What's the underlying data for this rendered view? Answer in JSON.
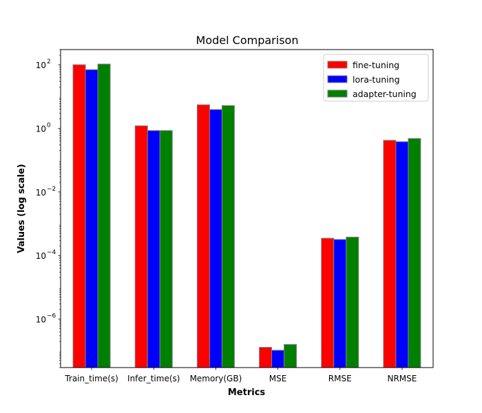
{
  "chart_data": {
    "type": "bar",
    "title": "Model Comparison",
    "xlabel": "Metrics",
    "ylabel": "Values (log scale)",
    "yscale": "log",
    "ylim": [
      3e-08,
      300
    ],
    "yticks": [
      {
        "base": "10",
        "exp": "2",
        "value": 100
      },
      {
        "base": "10",
        "exp": "0",
        "value": 1
      },
      {
        "base": "10",
        "exp": "−2",
        "value": 0.01
      },
      {
        "base": "10",
        "exp": "−4",
        "value": 0.0001
      },
      {
        "base": "10",
        "exp": "−6",
        "value": 1e-06
      }
    ],
    "categories": [
      "Train_time(s)",
      "Infer_time(s)",
      "Memory(GB)",
      "MSE",
      "RMSE",
      "NRMSE"
    ],
    "series": [
      {
        "name": "fine-tuning",
        "color": "#ff0000",
        "values": [
          100,
          1.2,
          5.5,
          1.3e-07,
          0.00035,
          0.42
        ]
      },
      {
        "name": "lora-tuning",
        "color": "#0000ff",
        "values": [
          70,
          0.85,
          3.9,
          1.05e-07,
          0.00032,
          0.38
        ]
      },
      {
        "name": "adapter-tuning",
        "color": "#008000",
        "values": [
          105,
          0.85,
          5.2,
          1.6e-07,
          0.00038,
          0.48
        ]
      }
    ],
    "legend_position": "top-right"
  }
}
